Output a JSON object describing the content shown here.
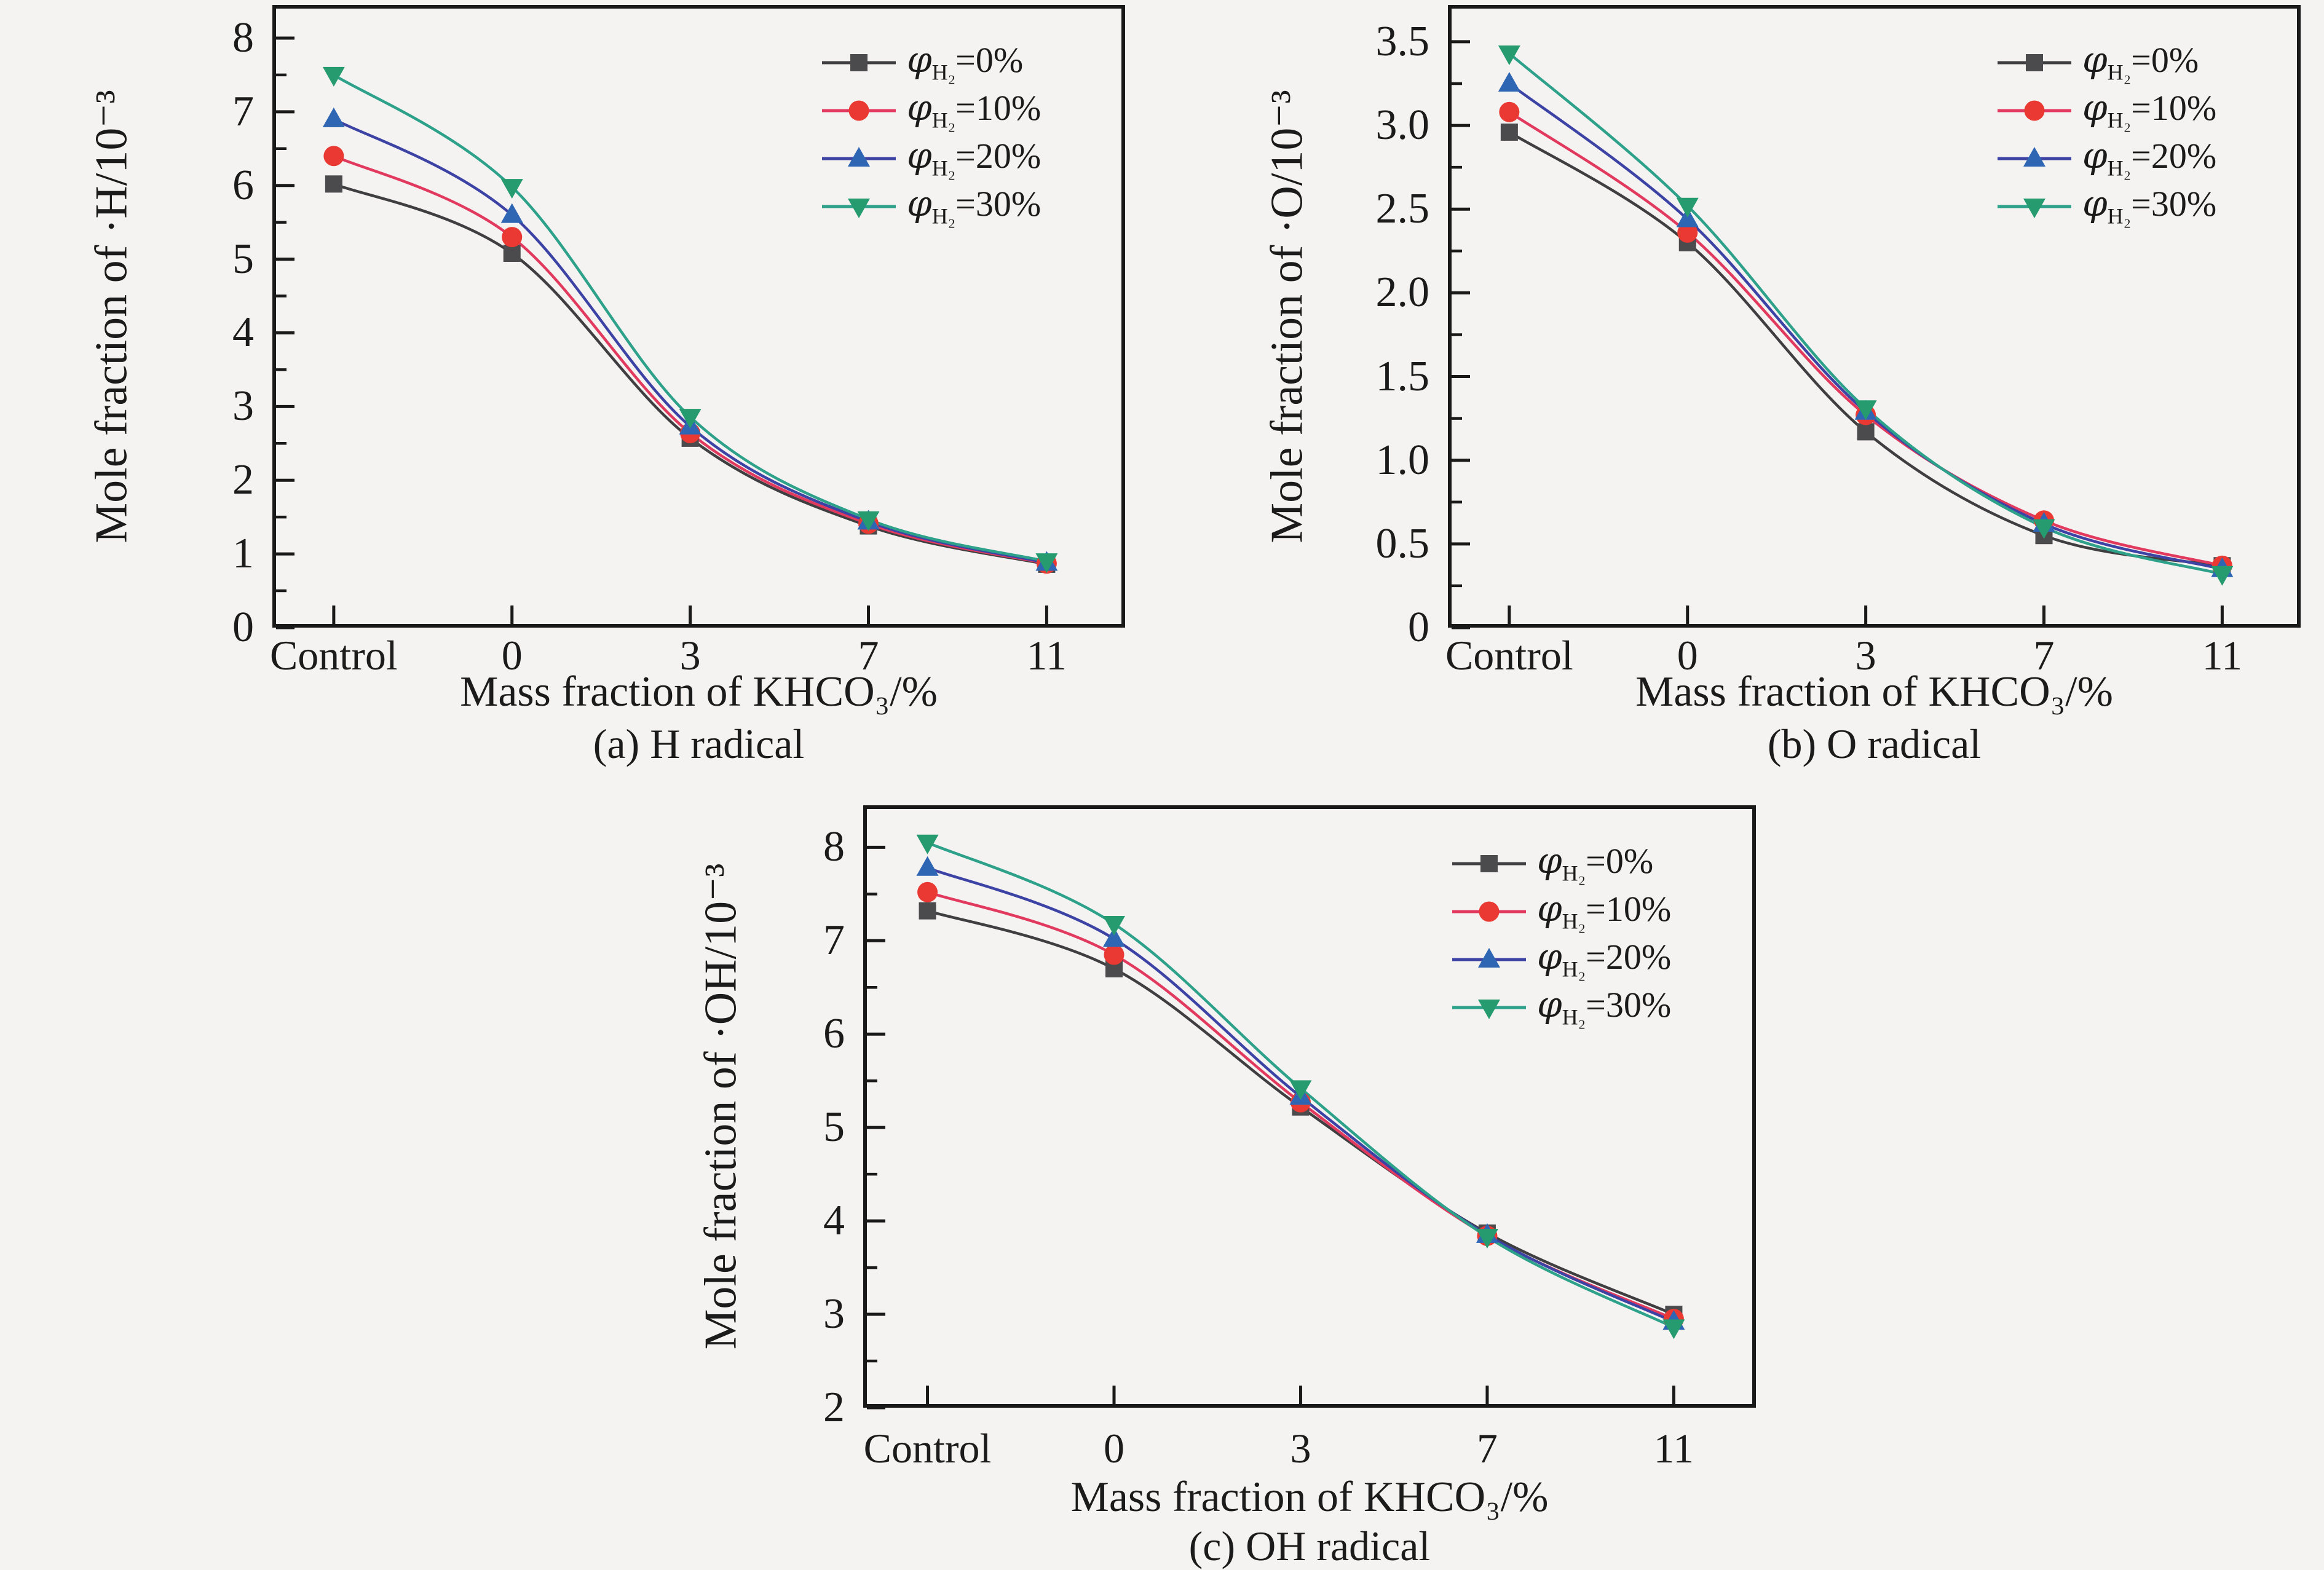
{
  "figure": {
    "background": "#f4f3f1",
    "axis_color": "#191919",
    "text_color": "#1b1b1b"
  },
  "chart_data": [
    {
      "id": "a",
      "type": "line",
      "title": "(a) H radical",
      "xlabel": "Mass fraction of KHCO₃/%",
      "ylabel": "Mole fraction of ·H/10⁻³",
      "categories": [
        "Control",
        "0",
        "3",
        "7",
        "11"
      ],
      "ylim": [
        0,
        8.45
      ],
      "ytick_values": [
        0,
        1,
        2,
        3,
        4,
        5,
        6,
        7,
        8
      ],
      "ytick_labels": [
        "0",
        "1",
        "2",
        "3",
        "4",
        "5",
        "6",
        "7",
        "8"
      ],
      "yminor_step": 0.5,
      "grid": false,
      "legend_position": "top-right",
      "series": [
        {
          "key": "h2-0",
          "sym": "φ",
          "sub": "H₂",
          "rest": "=0%",
          "marker": "square",
          "color_line": "#3f3f41",
          "color_marker": "#4b4b4d",
          "values": [
            6.02,
            5.08,
            2.57,
            1.38,
            0.86
          ]
        },
        {
          "key": "h2-10",
          "sym": "φ",
          "sub": "H₂",
          "rest": "=10%",
          "marker": "circle",
          "color_line": "#e13a5e",
          "color_marker": "#ea3832",
          "values": [
            6.4,
            5.3,
            2.64,
            1.41,
            0.87
          ]
        },
        {
          "key": "h2-20",
          "sym": "φ",
          "sub": "H₂",
          "rest": "=20%",
          "marker": "triangle-up",
          "color_line": "#3c43a4",
          "color_marker": "#2e66b4",
          "values": [
            6.9,
            5.6,
            2.73,
            1.44,
            0.88
          ]
        },
        {
          "key": "h2-30",
          "sym": "φ",
          "sub": "H₂",
          "rest": "=30%",
          "marker": "triangle-down",
          "color_line": "#2da189",
          "color_marker": "#279b70",
          "values": [
            7.5,
            5.98,
            2.86,
            1.47,
            0.9
          ]
        }
      ]
    },
    {
      "id": "b",
      "type": "line",
      "title": "(b) O radical",
      "xlabel": "Mass fraction of KHCO₃/%",
      "ylabel": "Mole fraction of ·O/10⁻³",
      "categories": [
        "Control",
        "0",
        "3",
        "7",
        "11"
      ],
      "ylim": [
        0,
        3.72
      ],
      "ytick_values": [
        0,
        0.5,
        1.0,
        1.5,
        2.0,
        2.5,
        3.0,
        3.5
      ],
      "ytick_labels": [
        "0",
        "0.5",
        "1.0",
        "1.5",
        "2.0",
        "2.5",
        "3.0",
        "3.5"
      ],
      "yminor_step": 0.25,
      "grid": false,
      "legend_position": "top-right",
      "series": [
        {
          "key": "h2-0",
          "sym": "φ",
          "sub": "H₂",
          "rest": "=0%",
          "marker": "square",
          "color_line": "#3f3f41",
          "color_marker": "#4b4b4d",
          "values": [
            2.96,
            2.3,
            1.17,
            0.55,
            0.37
          ]
        },
        {
          "key": "h2-10",
          "sym": "φ",
          "sub": "H₂",
          "rest": "=10%",
          "marker": "circle",
          "color_line": "#e13a5e",
          "color_marker": "#ea3832",
          "values": [
            3.08,
            2.36,
            1.27,
            0.64,
            0.37
          ]
        },
        {
          "key": "h2-20",
          "sym": "φ",
          "sub": "H₂",
          "rest": "=20%",
          "marker": "triangle-up",
          "color_line": "#3c43a4",
          "color_marker": "#2e66b4",
          "values": [
            3.25,
            2.44,
            1.29,
            0.62,
            0.35
          ]
        },
        {
          "key": "h2-30",
          "sym": "φ",
          "sub": "H₂",
          "rest": "=30%",
          "marker": "triangle-down",
          "color_line": "#2da189",
          "color_marker": "#279b70",
          "values": [
            3.43,
            2.52,
            1.31,
            0.6,
            0.32
          ]
        }
      ]
    },
    {
      "id": "c",
      "type": "line",
      "title": "(c) OH radical",
      "xlabel": "Mass fraction of KHCO₃/%",
      "ylabel": "Mole fraction of ·OH/10⁻³",
      "categories": [
        "Control",
        "0",
        "3",
        "7",
        "11"
      ],
      "ylim": [
        2,
        8.45
      ],
      "ytick_values": [
        2,
        3,
        4,
        5,
        6,
        7,
        8
      ],
      "ytick_labels": [
        "2",
        "3",
        "4",
        "5",
        "6",
        "7",
        "8"
      ],
      "yminor_step": 0.5,
      "grid": false,
      "legend_position": "top-right",
      "series": [
        {
          "key": "h2-0",
          "sym": "φ",
          "sub": "H₂",
          "rest": "=0%",
          "marker": "square",
          "color_line": "#3f3f41",
          "color_marker": "#4b4b4d",
          "values": [
            7.32,
            6.7,
            5.22,
            3.87,
            3.0
          ]
        },
        {
          "key": "h2-10",
          "sym": "φ",
          "sub": "H₂",
          "rest": "=10%",
          "marker": "circle",
          "color_line": "#e13a5e",
          "color_marker": "#ea3832",
          "values": [
            7.52,
            6.85,
            5.27,
            3.84,
            2.95
          ]
        },
        {
          "key": "h2-20",
          "sym": "φ",
          "sub": "H₂",
          "rest": "=20%",
          "marker": "triangle-up",
          "color_line": "#3c43a4",
          "color_marker": "#2e66b4",
          "values": [
            7.78,
            7.02,
            5.33,
            3.85,
            2.92
          ]
        },
        {
          "key": "h2-30",
          "sym": "φ",
          "sub": "H₂",
          "rest": "=30%",
          "marker": "triangle-down",
          "color_line": "#2da189",
          "color_marker": "#279b70",
          "values": [
            8.05,
            7.18,
            5.42,
            3.83,
            2.86
          ]
        }
      ]
    }
  ]
}
